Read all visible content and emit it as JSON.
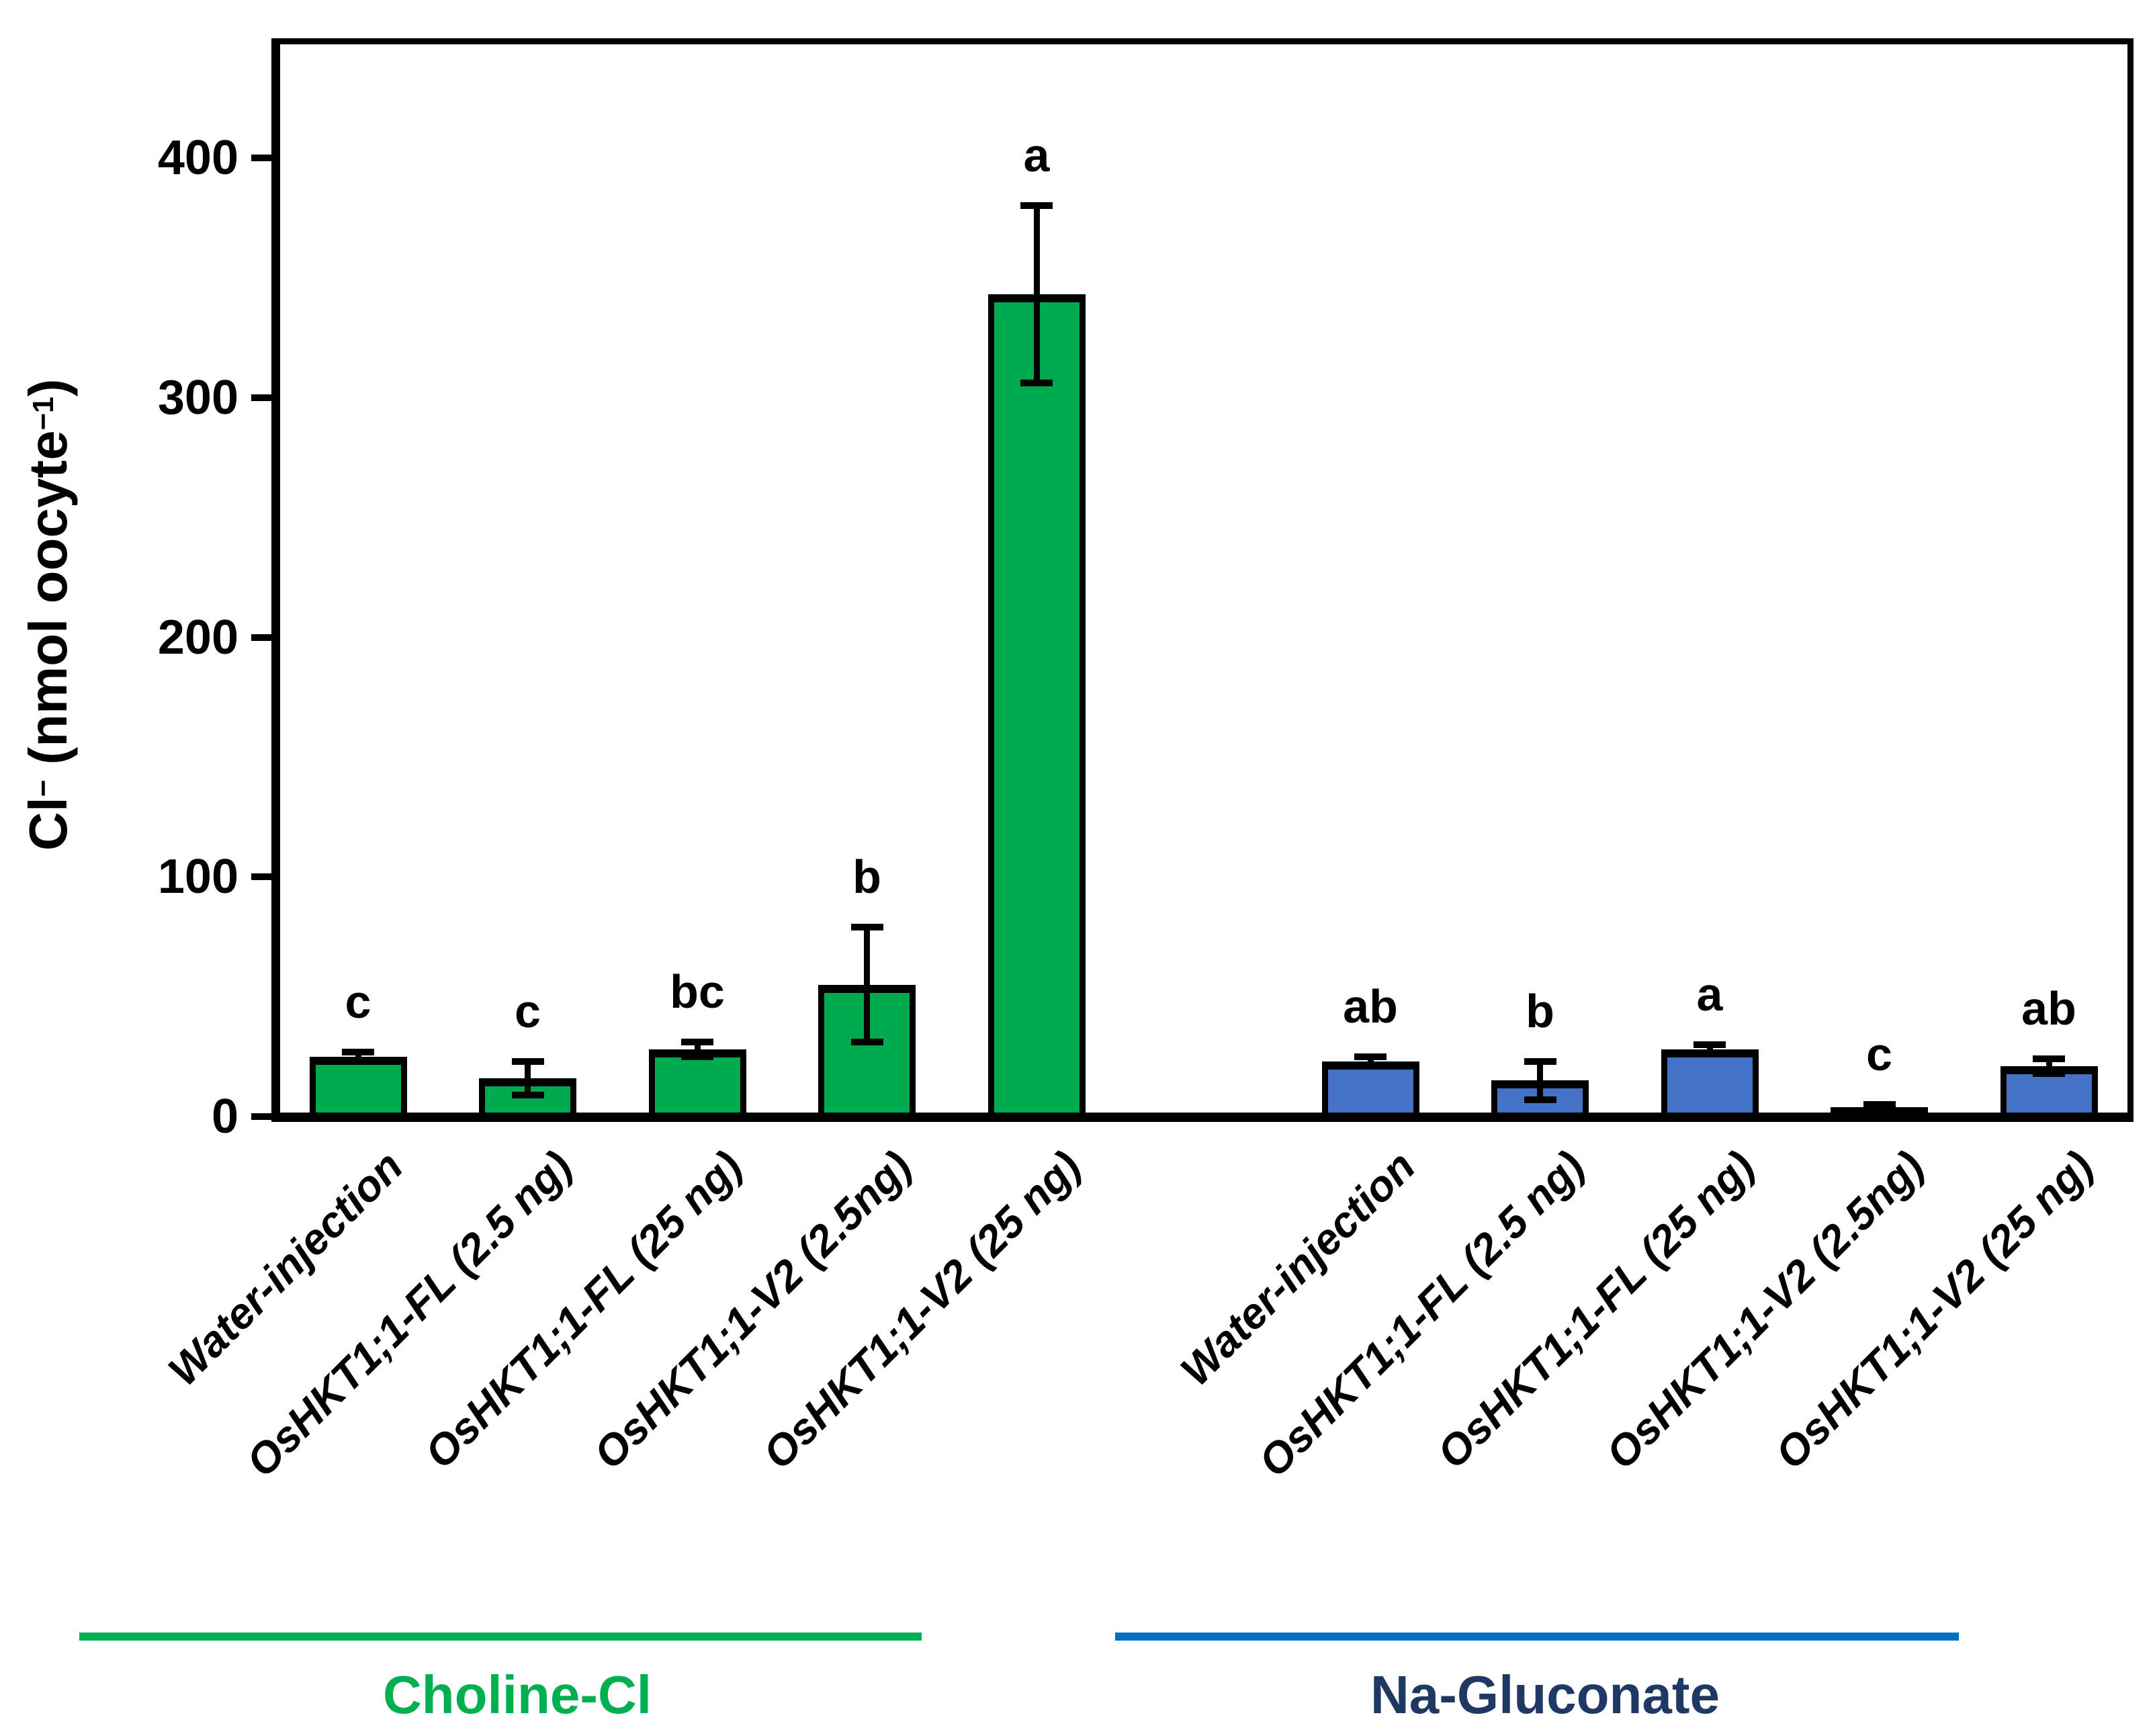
{
  "y_axis": {
    "label_parts": {
      "base1": "Cl",
      "sup1": "−",
      "base2": " (nmol oocyte",
      "sup2": "−1",
      "base3": ")"
    },
    "ticks": [
      "0",
      "100",
      "200",
      "300",
      "400"
    ]
  },
  "chart_data": {
    "type": "bar",
    "title": "",
    "ylabel": "Cl− (nmol oocyte−1)",
    "ylim": [
      0,
      450
    ],
    "grid": false,
    "legend": "none",
    "categories": [
      "Water-injection",
      "OsHKT1;1-FL (2.5 ng)",
      "OsHKT1;1-FL (25 ng)",
      "OsHKT1;1-V2 (2.5ng)",
      "OsHKT1;1-V2 (25 ng)"
    ],
    "groups": [
      {
        "name": "Choline-Cl",
        "bar_color": "#00AB50",
        "line_color": "#00B050",
        "label_color": "#00B050",
        "bars": [
          {
            "label": "Water-injection",
            "value": 25,
            "error": 2,
            "letter": "c"
          },
          {
            "label": "OsHKT1;1-FL (2.5 ng)",
            "value": 16,
            "error": 7,
            "letter": "c"
          },
          {
            "label": "OsHKT1;1-FL (25 ng)",
            "value": 28,
            "error": 3,
            "letter": "bc"
          },
          {
            "label": "OsHKT1;1-V2 (2.5ng)",
            "value": 55,
            "error": 24,
            "letter": "b"
          },
          {
            "label": "OsHKT1;1-V2 (25 ng)",
            "value": 343,
            "error": 37,
            "letter": "a"
          }
        ]
      },
      {
        "name": "Na-Gluconate",
        "bar_color": "#4472C4",
        "line_color": "#0070C0",
        "label_color": "#1F3864",
        "bars": [
          {
            "label": "Water-injection",
            "value": 23,
            "error": 2,
            "letter": "ab"
          },
          {
            "label": "OsHKT1;1-FL (2.5 ng)",
            "value": 15,
            "error": 8,
            "letter": "b"
          },
          {
            "label": "OsHKT1;1-FL (25 ng)",
            "value": 28,
            "error": 2,
            "letter": "a"
          },
          {
            "label": "OsHKT1;1-V2 (2.5ng)",
            "value": 4,
            "error": 1,
            "letter": "c"
          },
          {
            "label": "OsHKT1;1-V2 (25 ng)",
            "value": 21,
            "error": 3,
            "letter": "ab"
          }
        ]
      }
    ]
  }
}
